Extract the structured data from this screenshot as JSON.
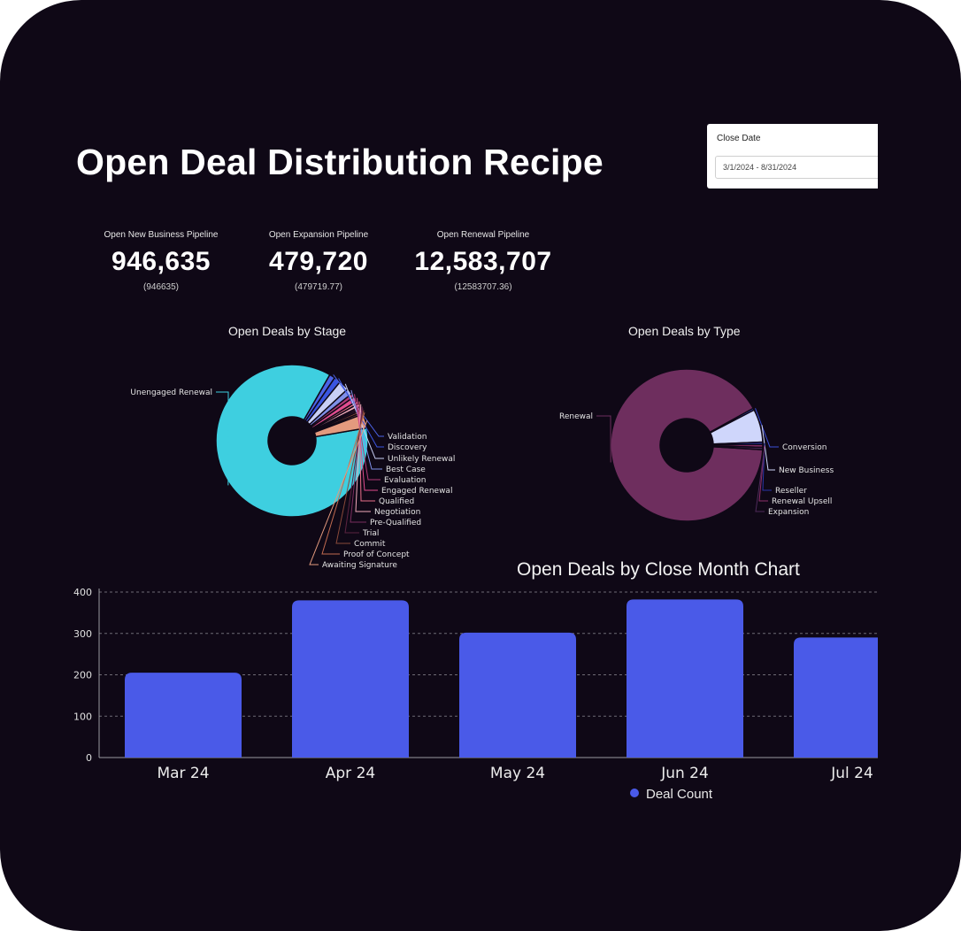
{
  "page": {
    "title": "Open Deal Distribution Recipe"
  },
  "filter": {
    "label": "Close Date",
    "value": "3/1/2024 - 8/31/2024"
  },
  "kpis": [
    {
      "label": "Open New Business Pipeline",
      "value": "946,635",
      "raw": "(946635)"
    },
    {
      "label": "Open Expansion Pipeline",
      "value": "479,720",
      "raw": "(479719.77)"
    },
    {
      "label": "Open Renewal Pipeline",
      "value": "12,583,707",
      "raw": "(12583707.36)"
    }
  ],
  "stage_chart": {
    "title": "Open Deals by Stage",
    "slices": [
      {
        "label": "Unengaged Renewal",
        "value": 86.0,
        "color": "#3ecfe0"
      },
      {
        "label": "Validation",
        "value": 1.2,
        "color": "#4b63e6"
      },
      {
        "label": "Discovery",
        "value": 1.4,
        "color": "#3a55e0"
      },
      {
        "label": "Unlikely Renewal",
        "value": 2.2,
        "color": "#c9cff5"
      },
      {
        "label": "Best Case",
        "value": 1.3,
        "color": "#7f8fe8"
      },
      {
        "label": "Evaluation",
        "value": 0.8,
        "color": "#b03a78"
      },
      {
        "label": "Engaged Renewal",
        "value": 1.1,
        "color": "#e04d8f"
      },
      {
        "label": "Qualified",
        "value": 0.6,
        "color": "#e86f8a"
      },
      {
        "label": "Negotiation",
        "value": 0.7,
        "color": "#f1aabb"
      },
      {
        "label": "Pre-Qualified",
        "value": 0.4,
        "color": "#7a2e5e"
      },
      {
        "label": "Trial",
        "value": 0.4,
        "color": "#5b2340"
      },
      {
        "label": "Commit",
        "value": 0.5,
        "color": "#8a4a3a"
      },
      {
        "label": "Proof of Concept",
        "value": 0.4,
        "color": "#c06a50"
      },
      {
        "label": "Awaiting Signature",
        "value": 3.0,
        "color": "#e39a7e"
      }
    ]
  },
  "type_chart": {
    "title": "Open Deals by Type",
    "slices": [
      {
        "label": "Renewal",
        "value": 91.0,
        "color": "#6e2e5e"
      },
      {
        "label": "Conversion",
        "value": 0.4,
        "color": "#3b4fd8"
      },
      {
        "label": "New Business",
        "value": 7.0,
        "color": "#cfd6fb"
      },
      {
        "label": "Reseller",
        "value": 0.5,
        "color": "#2a35a8"
      },
      {
        "label": "Renewal Upsell",
        "value": 0.6,
        "color": "#8e2f6b"
      },
      {
        "label": "Expansion",
        "value": 0.5,
        "color": "#4e2a5a"
      }
    ]
  },
  "chart_data": {
    "type": "bar",
    "title": "Open Deals by Close Month Chart",
    "categories": [
      "Mar 24",
      "Apr 24",
      "May 24",
      "Jun 24",
      "Jul 24"
    ],
    "series": [
      {
        "name": "Deal Count",
        "values": [
          205,
          380,
          302,
          382,
          290
        ],
        "color": "#4a5ae8"
      }
    ],
    "yticks": [
      "0",
      "100",
      "200",
      "300",
      "400"
    ],
    "ylim": [
      0,
      400
    ],
    "xlabel": "",
    "ylabel": "",
    "grid": true,
    "legend": "bottom"
  }
}
